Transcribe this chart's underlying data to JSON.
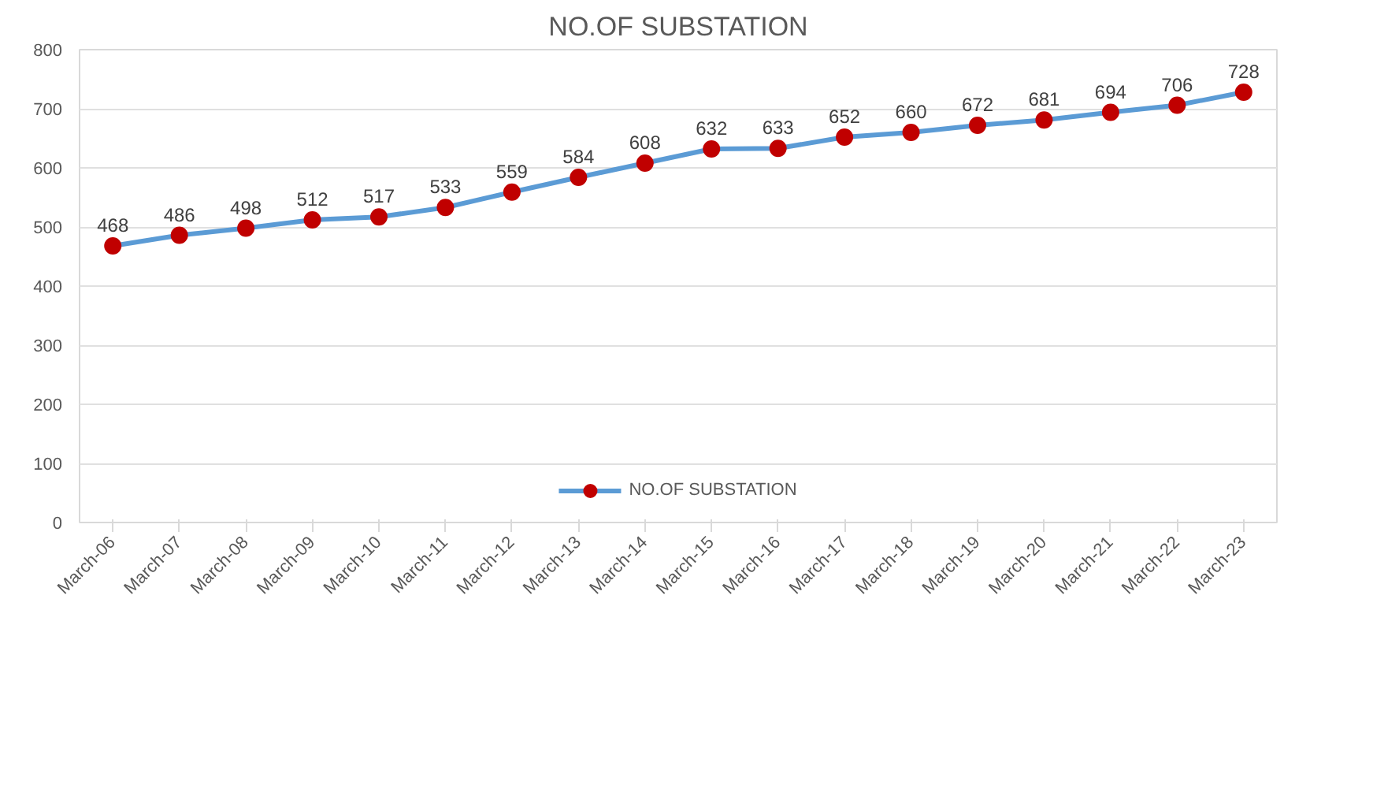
{
  "chart_data": {
    "type": "line",
    "title": "NO.OF SUBSTATION",
    "categories": [
      "March-06",
      "March-07",
      "March-08",
      "March-09",
      "March-10",
      "March-11",
      "March-12",
      "March-13",
      "March-14",
      "March-15",
      "March-16",
      "March-17",
      "March-18",
      "March-19",
      "March-20",
      "March-21",
      "March-22",
      "March-23"
    ],
    "series": [
      {
        "name": "NO.OF SUBSTATION",
        "color": "#5b9bd5",
        "values": [
          468,
          486,
          498,
          512,
          517,
          533,
          559,
          584,
          608,
          632,
          633,
          652,
          660,
          672,
          681,
          694,
          706,
          728
        ]
      }
    ],
    "ylim": [
      0,
      800
    ],
    "yticks": [
      0,
      100,
      200,
      300,
      400,
      500,
      600,
      700,
      800
    ],
    "grid": "y",
    "legend": "bottom",
    "marker": "circle",
    "line_style": "solid",
    "data_labels": true
  }
}
